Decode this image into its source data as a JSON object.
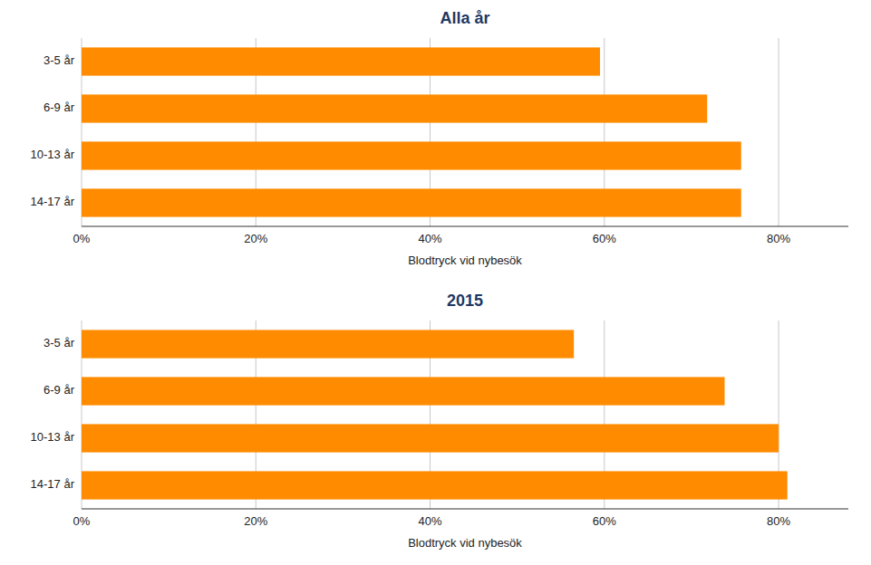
{
  "chart_data": [
    {
      "type": "bar",
      "orientation": "horizontal",
      "title": "Alla år",
      "categories": [
        "3-5 år",
        "6-9 år",
        "10-13 år",
        "14-17 år"
      ],
      "values": [
        0.595,
        0.718,
        0.757,
        0.757
      ],
      "color": "#FF8C00",
      "xlabel": "Blodtryck vid nybesök",
      "xlim": [
        0,
        0.88
      ],
      "xticks": [
        {
          "value": 0.0,
          "label": "0%"
        },
        {
          "value": 0.2,
          "label": "20%"
        },
        {
          "value": 0.4,
          "label": "40%"
        },
        {
          "value": 0.6,
          "label": "60%"
        },
        {
          "value": 0.8,
          "label": "80%"
        }
      ],
      "grid": true
    },
    {
      "type": "bar",
      "orientation": "horizontal",
      "title": "2015",
      "categories": [
        "3-5 år",
        "6-9 år",
        "10-13 år",
        "14-17 år"
      ],
      "values": [
        0.565,
        0.738,
        0.8,
        0.81
      ],
      "color": "#FF8C00",
      "xlabel": "Blodtryck vid nybesök",
      "xlim": [
        0,
        0.88
      ],
      "xticks": [
        {
          "value": 0.0,
          "label": "0%"
        },
        {
          "value": 0.2,
          "label": "20%"
        },
        {
          "value": 0.4,
          "label": "40%"
        },
        {
          "value": 0.6,
          "label": "60%"
        },
        {
          "value": 0.8,
          "label": "80%"
        }
      ],
      "grid": true
    }
  ]
}
